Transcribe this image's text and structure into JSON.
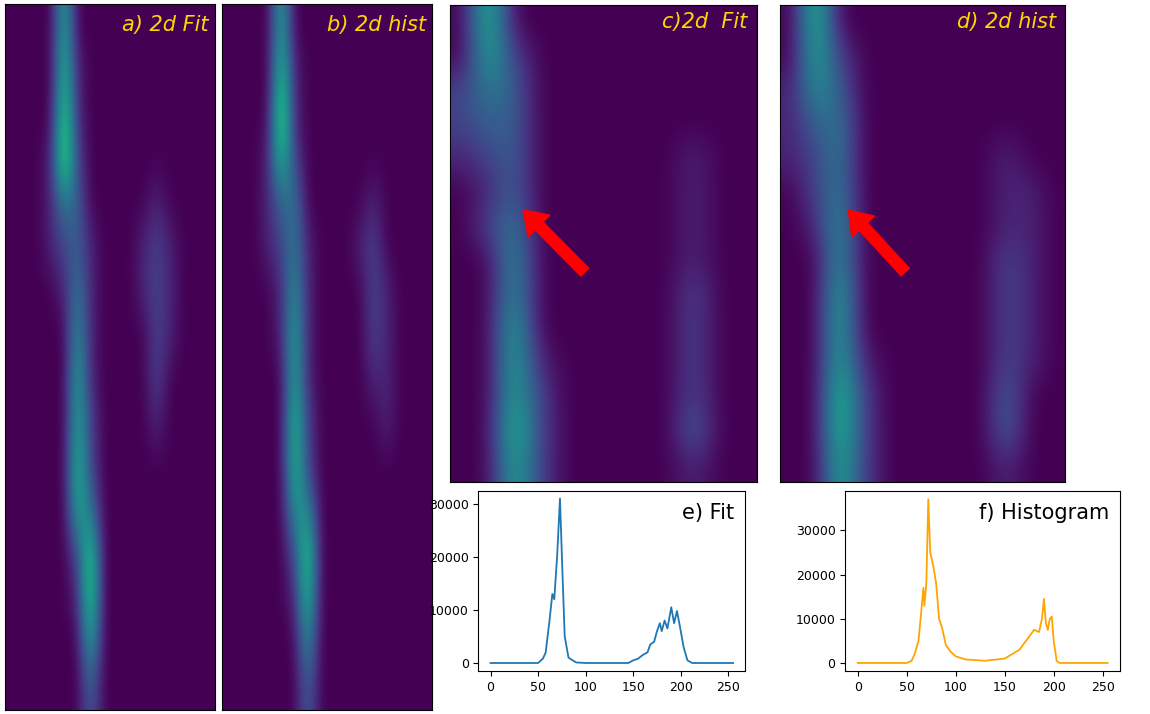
{
  "chart_data": [
    {
      "type": "heatmap",
      "title": "a) 2d Fit",
      "tick_labels": false,
      "crange": [
        0,
        10
      ],
      "cells": [
        [
          0,
          0,
          0,
          0,
          6,
          0,
          0,
          0,
          0,
          0,
          0,
          0,
          0,
          0,
          0,
          0
        ],
        [
          0,
          0,
          0,
          0,
          7,
          1,
          0,
          0,
          0,
          0,
          0,
          0,
          0,
          0,
          0,
          0
        ],
        [
          0,
          0,
          0,
          0,
          8,
          1,
          0,
          0,
          0,
          0,
          0,
          0,
          0,
          0,
          0,
          0
        ],
        [
          0,
          0,
          0,
          1,
          9,
          2,
          0,
          0,
          0,
          0,
          0,
          0,
          0,
          0,
          0,
          0
        ],
        [
          0,
          0,
          0,
          1,
          4,
          3,
          0,
          0,
          0,
          0,
          0,
          1,
          0,
          0,
          0,
          0
        ],
        [
          0,
          0,
          0,
          1,
          2,
          3,
          1,
          0,
          0,
          0,
          1,
          2,
          1,
          0,
          0,
          0
        ],
        [
          0,
          0,
          0,
          0,
          1,
          4,
          1,
          0,
          0,
          0,
          1,
          2,
          1,
          0,
          0,
          0
        ],
        [
          0,
          0,
          0,
          0,
          0,
          5,
          1,
          0,
          0,
          0,
          0,
          2,
          1,
          0,
          0,
          0
        ],
        [
          0,
          0,
          0,
          0,
          0,
          6,
          1,
          0,
          0,
          0,
          0,
          2,
          0,
          0,
          0,
          0
        ],
        [
          0,
          0,
          0,
          0,
          0,
          6,
          2,
          0,
          0,
          0,
          0,
          1,
          0,
          0,
          0,
          0
        ],
        [
          0,
          0,
          0,
          0,
          0,
          7,
          2,
          0,
          0,
          0,
          0,
          0,
          0,
          0,
          0,
          0
        ],
        [
          0,
          0,
          0,
          0,
          0,
          6,
          4,
          0,
          0,
          0,
          0,
          0,
          0,
          0,
          0,
          0
        ],
        [
          0,
          0,
          0,
          0,
          0,
          2,
          8,
          0,
          0,
          0,
          0,
          0,
          0,
          0,
          0,
          0
        ],
        [
          0,
          0,
          0,
          0,
          0,
          1,
          8,
          0,
          0,
          0,
          0,
          0,
          0,
          0,
          0,
          0
        ],
        [
          0,
          0,
          0,
          0,
          0,
          0,
          6,
          0,
          0,
          0,
          0,
          0,
          0,
          0,
          0,
          0
        ],
        [
          0,
          0,
          0,
          0,
          0,
          0,
          3,
          0,
          0,
          0,
          0,
          0,
          0,
          0,
          0,
          0
        ]
      ]
    },
    {
      "type": "heatmap",
      "title": "b) 2d hist",
      "tick_labels": false,
      "crange": [
        0,
        10
      ],
      "cells": [
        [
          0,
          0,
          0,
          0,
          6,
          0,
          0,
          0,
          0,
          0,
          0,
          0,
          0,
          0,
          0,
          0
        ],
        [
          0,
          0,
          0,
          0,
          7,
          1,
          0,
          0,
          0,
          0,
          0,
          0,
          0,
          0,
          0,
          0
        ],
        [
          0,
          0,
          0,
          0,
          9,
          1,
          0,
          0,
          0,
          0,
          0,
          0,
          0,
          0,
          0,
          0
        ],
        [
          0,
          0,
          0,
          1,
          7,
          2,
          0,
          0,
          0,
          0,
          0,
          0,
          0,
          0,
          0,
          0
        ],
        [
          0,
          0,
          0,
          1,
          3,
          4,
          0,
          0,
          0,
          0,
          0,
          1,
          0,
          0,
          0,
          0
        ],
        [
          0,
          0,
          0,
          1,
          2,
          4,
          1,
          0,
          0,
          0,
          1,
          2,
          0,
          0,
          0,
          0
        ],
        [
          0,
          0,
          0,
          0,
          1,
          5,
          1,
          0,
          0,
          0,
          0,
          2,
          1,
          0,
          0,
          0
        ],
        [
          0,
          0,
          0,
          0,
          1,
          6,
          1,
          0,
          0,
          0,
          0,
          2,
          1,
          0,
          0,
          0
        ],
        [
          0,
          0,
          0,
          0,
          0,
          6,
          1,
          0,
          0,
          0,
          0,
          1,
          1,
          0,
          0,
          0
        ],
        [
          0,
          0,
          0,
          0,
          0,
          7,
          2,
          0,
          0,
          0,
          0,
          0,
          1,
          0,
          0,
          0
        ],
        [
          0,
          0,
          0,
          0,
          0,
          7,
          2,
          0,
          0,
          0,
          0,
          0,
          0,
          0,
          0,
          0
        ],
        [
          0,
          0,
          0,
          0,
          0,
          5,
          5,
          0,
          0,
          0,
          0,
          0,
          0,
          0,
          0,
          0
        ],
        [
          0,
          0,
          0,
          0,
          0,
          2,
          8,
          0,
          0,
          0,
          0,
          0,
          0,
          0,
          0,
          0
        ],
        [
          0,
          0,
          0,
          0,
          0,
          1,
          7,
          0,
          0,
          0,
          0,
          0,
          0,
          0,
          0,
          0
        ],
        [
          0,
          0,
          0,
          0,
          0,
          0,
          5,
          0,
          0,
          0,
          0,
          0,
          0,
          0,
          0,
          0
        ],
        [
          0,
          0,
          0,
          0,
          0,
          0,
          3,
          0,
          0,
          0,
          0,
          0,
          0,
          0,
          0,
          0
        ]
      ]
    },
    {
      "type": "heatmap",
      "title": "c)2d  Fit",
      "tick_labels": false,
      "crange": [
        0,
        10
      ],
      "cells": [
        [
          0,
          7,
          0,
          0,
          0,
          0,
          0,
          0,
          0,
          0,
          0,
          0
        ],
        [
          0,
          6,
          2,
          0,
          0,
          0,
          0,
          0,
          0,
          0,
          0,
          0
        ],
        [
          2,
          4,
          3,
          0,
          0,
          0,
          0,
          0,
          0,
          0,
          0,
          0
        ],
        [
          2,
          3,
          3,
          0,
          0,
          0,
          0,
          0,
          0,
          0,
          0,
          0
        ],
        [
          1,
          2,
          3,
          0,
          0,
          0,
          0,
          0,
          0,
          1,
          0,
          0
        ],
        [
          0,
          1,
          3,
          0,
          0,
          0,
          0,
          0,
          0,
          1,
          0,
          0
        ],
        [
          0,
          2,
          4,
          0,
          0,
          0,
          0,
          0,
          0,
          1,
          0,
          0
        ],
        [
          0,
          0,
          5,
          0,
          0,
          0,
          0,
          0,
          0,
          1,
          0,
          0
        ],
        [
          0,
          0,
          5,
          0,
          0,
          0,
          0,
          0,
          0,
          2,
          0,
          0
        ],
        [
          0,
          0,
          6,
          0,
          0,
          0,
          0,
          0,
          0,
          2,
          0,
          0
        ],
        [
          0,
          0,
          6,
          1,
          0,
          0,
          0,
          0,
          0,
          2,
          0,
          0
        ],
        [
          0,
          0,
          6,
          2,
          0,
          0,
          0,
          0,
          0,
          2,
          0,
          0
        ],
        [
          0,
          0,
          7,
          2,
          0,
          0,
          0,
          0,
          0,
          3,
          0,
          0
        ],
        [
          0,
          0,
          6,
          2,
          0,
          0,
          0,
          0,
          0,
          1,
          0,
          0
        ]
      ]
    },
    {
      "type": "heatmap",
      "title": "d) 2d hist",
      "tick_labels": false,
      "crange": [
        0,
        10
      ],
      "cells": [
        [
          0,
          7,
          0,
          0,
          0,
          0,
          0,
          0,
          0,
          0,
          0,
          0
        ],
        [
          0,
          6,
          2,
          0,
          0,
          0,
          0,
          0,
          0,
          0,
          0,
          0
        ],
        [
          1,
          5,
          3,
          0,
          0,
          0,
          0,
          0,
          0,
          0,
          0,
          0
        ],
        [
          1,
          3,
          4,
          0,
          0,
          0,
          0,
          0,
          0,
          0,
          0,
          0
        ],
        [
          1,
          2,
          4,
          0,
          0,
          0,
          0,
          0,
          0,
          1,
          0,
          0
        ],
        [
          0,
          2,
          4,
          0,
          0,
          0,
          0,
          0,
          0,
          1,
          1,
          0
        ],
        [
          0,
          1,
          5,
          0,
          0,
          0,
          0,
          0,
          0,
          1,
          1,
          0
        ],
        [
          0,
          0,
          5,
          0,
          0,
          0,
          0,
          0,
          0,
          2,
          1,
          0
        ],
        [
          0,
          0,
          6,
          0,
          0,
          0,
          0,
          0,
          0,
          2,
          1,
          0
        ],
        [
          0,
          0,
          6,
          0,
          0,
          0,
          0,
          0,
          0,
          2,
          1,
          0
        ],
        [
          0,
          0,
          6,
          1,
          0,
          0,
          0,
          0,
          0,
          2,
          1,
          0
        ],
        [
          0,
          0,
          7,
          2,
          0,
          0,
          0,
          0,
          0,
          3,
          0,
          0
        ],
        [
          0,
          0,
          7,
          2,
          0,
          0,
          0,
          0,
          0,
          3,
          0,
          0
        ],
        [
          0,
          0,
          6,
          2,
          0,
          0,
          0,
          0,
          0,
          1,
          0,
          0
        ]
      ]
    },
    {
      "type": "line",
      "title": "e) Fit",
      "color": "#1f77b4",
      "x": [
        0,
        50,
        55,
        58,
        62,
        65,
        67,
        70,
        73,
        76,
        78,
        82,
        90,
        100,
        145,
        150,
        155,
        160,
        165,
        168,
        172,
        175,
        178,
        180,
        183,
        186,
        190,
        193,
        196,
        199,
        203,
        207,
        212,
        255
      ],
      "values": [
        0,
        0,
        800,
        2000,
        8000,
        13000,
        12000,
        20000,
        31000,
        15000,
        5000,
        1000,
        100,
        0,
        0,
        500,
        800,
        1500,
        2000,
        3500,
        4000,
        6000,
        7500,
        6000,
        8000,
        6500,
        10500,
        7500,
        9800,
        7000,
        3000,
        500,
        0,
        0
      ],
      "xlim": [
        -12.75,
        267.75
      ],
      "xticks": [
        0,
        50,
        100,
        150,
        200,
        250
      ],
      "ylim": [
        -1540,
        32500
      ],
      "yticks": [
        0,
        10000,
        20000,
        30000
      ]
    },
    {
      "type": "line",
      "title": "f) Histogram",
      "color": "#ffa500",
      "x": [
        0,
        50,
        55,
        58,
        62,
        65,
        67,
        68,
        70,
        72,
        74,
        77,
        80,
        83,
        86,
        90,
        95,
        100,
        110,
        130,
        150,
        165,
        175,
        180,
        185,
        188,
        190,
        192,
        194,
        196,
        198,
        200,
        203,
        206,
        255
      ],
      "values": [
        0,
        0,
        500,
        2000,
        5000,
        12000,
        17000,
        13000,
        18000,
        37000,
        25000,
        22000,
        18000,
        10000,
        8000,
        4000,
        2500,
        1500,
        800,
        500,
        1000,
        3000,
        6000,
        7500,
        7000,
        10000,
        14500,
        9000,
        7500,
        10000,
        10500,
        5000,
        500,
        0,
        0
      ],
      "xlim": [
        -12.75,
        267.75
      ],
      "xticks": [
        0,
        50,
        100,
        150,
        200,
        250
      ],
      "ylim": [
        -1850,
        39000
      ],
      "yticks": [
        0,
        10000,
        20000,
        30000
      ]
    }
  ]
}
